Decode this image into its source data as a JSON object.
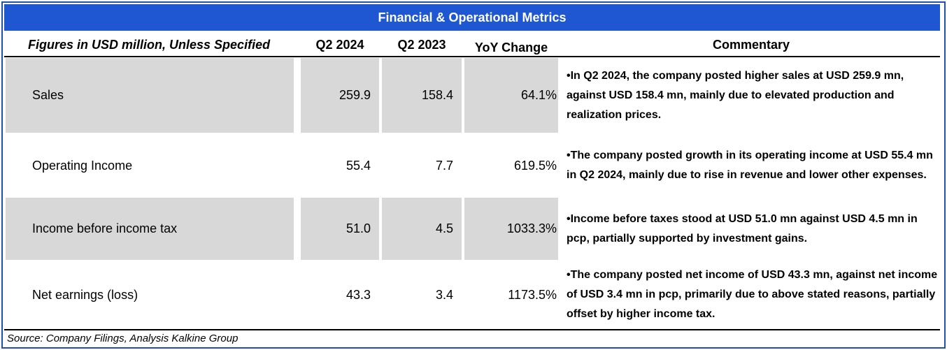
{
  "title": "Financial & Operational Metrics",
  "headers": {
    "label": "Figures in USD million, Unless Specified",
    "q2_2024": "Q2 2024",
    "q2_2023": "Q2 2023",
    "yoy": "YoY Change",
    "commentary": "Commentary"
  },
  "rows": [
    {
      "label": "Sales",
      "q2_2024": "259.9",
      "q2_2023": "158.4",
      "yoy": "64.1%",
      "commentary": "•In Q2 2024, the company posted higher sales at USD 259.9 mn, against USD 158.4 mn, mainly due to elevated production and realization prices."
    },
    {
      "label": "Operating Income",
      "q2_2024": "55.4",
      "q2_2023": "7.7",
      "yoy": "619.5%",
      "commentary": "•The company posted growth in its operating income at USD 55.4 mn in Q2 2024, mainly due to rise in revenue and lower other expenses."
    },
    {
      "label": "Income before income tax",
      "q2_2024": "51.0",
      "q2_2023": "4.5",
      "yoy": "1033.3%",
      "commentary": "•Income before taxes stood at USD 51.0 mn against USD 4.5 mn in pcp, partially supported by investment gains."
    },
    {
      "label": "Net earnings (loss)",
      "q2_2024": "43.3",
      "q2_2023": "3.4",
      "yoy": "1173.5%",
      "commentary": "•The company posted net income of USD 43.3 mn, against net income of USD 3.4 mn in pcp, primarily due to above stated reasons, partially offset by higher income tax."
    }
  ],
  "source": "Source: Company Filings, Analysis Kalkine Group",
  "colors": {
    "title_bar": "#1f56d2",
    "border": "#1f4fb4",
    "shade": "#d8d8d8"
  }
}
